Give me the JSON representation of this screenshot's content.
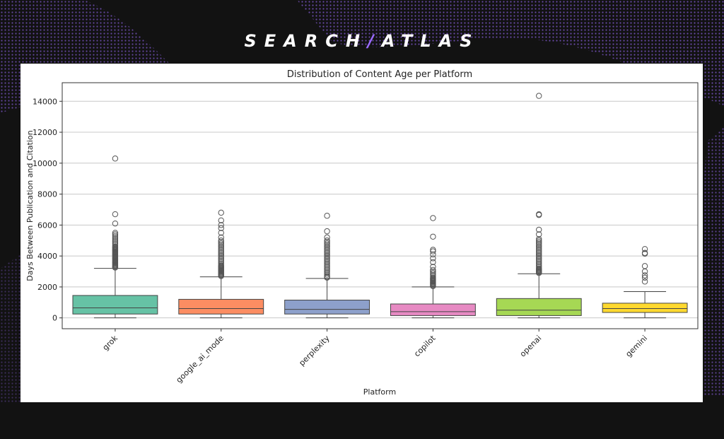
{
  "brand": {
    "left": "SEARCH",
    "right": "ATLAS"
  },
  "chart_data": {
    "type": "box",
    "title": "Distribution of Content Age per Platform",
    "xlabel": "Platform",
    "ylabel": "Days Between Publication and Citation",
    "ylim": [
      -700,
      15200
    ],
    "yticks": [
      0,
      2000,
      4000,
      6000,
      8000,
      10000,
      12000,
      14000
    ],
    "grid": "y",
    "categories": [
      "grok",
      "google_ai_mode",
      "perplexity",
      "copilot",
      "openai",
      "gemini"
    ],
    "boxes": [
      {
        "name": "grok",
        "color": "#66c2a5",
        "min": 0,
        "q1": 250,
        "median": 650,
        "q3": 1450,
        "max": 3200,
        "outliers": [
          3250,
          3300,
          3350,
          3400,
          3450,
          3500,
          3550,
          3600,
          3650,
          3700,
          3750,
          3800,
          3850,
          3900,
          3950,
          4000,
          4050,
          4100,
          4150,
          4200,
          4250,
          4300,
          4350,
          4400,
          4450,
          4500,
          4550,
          4600,
          4700,
          4800,
          4900,
          5000,
          5100,
          5200,
          5300,
          5400,
          5500,
          6100,
          6700,
          10300
        ]
      },
      {
        "name": "google_ai_mode",
        "color": "#fc8d62",
        "min": 0,
        "q1": 250,
        "median": 600,
        "q3": 1200,
        "max": 2650,
        "outliers": [
          2700,
          2750,
          2800,
          2850,
          2900,
          2950,
          3000,
          3050,
          3100,
          3150,
          3200,
          3250,
          3300,
          3350,
          3400,
          3500,
          3600,
          3700,
          3800,
          3900,
          4000,
          4100,
          4200,
          4300,
          4400,
          4500,
          4600,
          4700,
          4800,
          4900,
          5000,
          5200,
          5500,
          5800,
          6000,
          6300,
          6800
        ]
      },
      {
        "name": "perplexity",
        "color": "#8da0cb",
        "min": 0,
        "q1": 250,
        "median": 550,
        "q3": 1150,
        "max": 2550,
        "outliers": [
          2600,
          2650,
          2700,
          2800,
          2900,
          3000,
          3100,
          3200,
          3300,
          3400,
          3500,
          3600,
          3700,
          3800,
          3900,
          4000,
          4100,
          4200,
          4300,
          4400,
          4500,
          4600,
          4700,
          4800,
          4900,
          5000,
          5200,
          5600,
          6600
        ]
      },
      {
        "name": "copilot",
        "color": "#e78ac3",
        "min": 0,
        "q1": 150,
        "median": 400,
        "q3": 900,
        "max": 2000,
        "outliers": [
          2050,
          2100,
          2150,
          2200,
          2250,
          2300,
          2350,
          2400,
          2450,
          2500,
          2550,
          2600,
          2700,
          2800,
          2900,
          3000,
          3100,
          3300,
          3600,
          3850,
          4100,
          4300,
          4400,
          5250,
          6450
        ]
      },
      {
        "name": "openai",
        "color": "#a6d854",
        "min": 0,
        "q1": 150,
        "median": 500,
        "q3": 1250,
        "max": 2850,
        "outliers": [
          2900,
          2950,
          3000,
          3050,
          3100,
          3150,
          3200,
          3300,
          3400,
          3500,
          3600,
          3700,
          3800,
          3900,
          4000,
          4100,
          4200,
          4300,
          4400,
          4500,
          4600,
          4700,
          4800,
          4900,
          5000,
          5100,
          5400,
          5700,
          6650,
          6700,
          14350
        ]
      },
      {
        "name": "gemini",
        "color": "#ffd92f",
        "min": 0,
        "q1": 350,
        "median": 600,
        "q3": 950,
        "max": 1700,
        "outliers": [
          2350,
          2600,
          2750,
          3000,
          3350,
          4150,
          4200,
          4450
        ]
      }
    ]
  }
}
